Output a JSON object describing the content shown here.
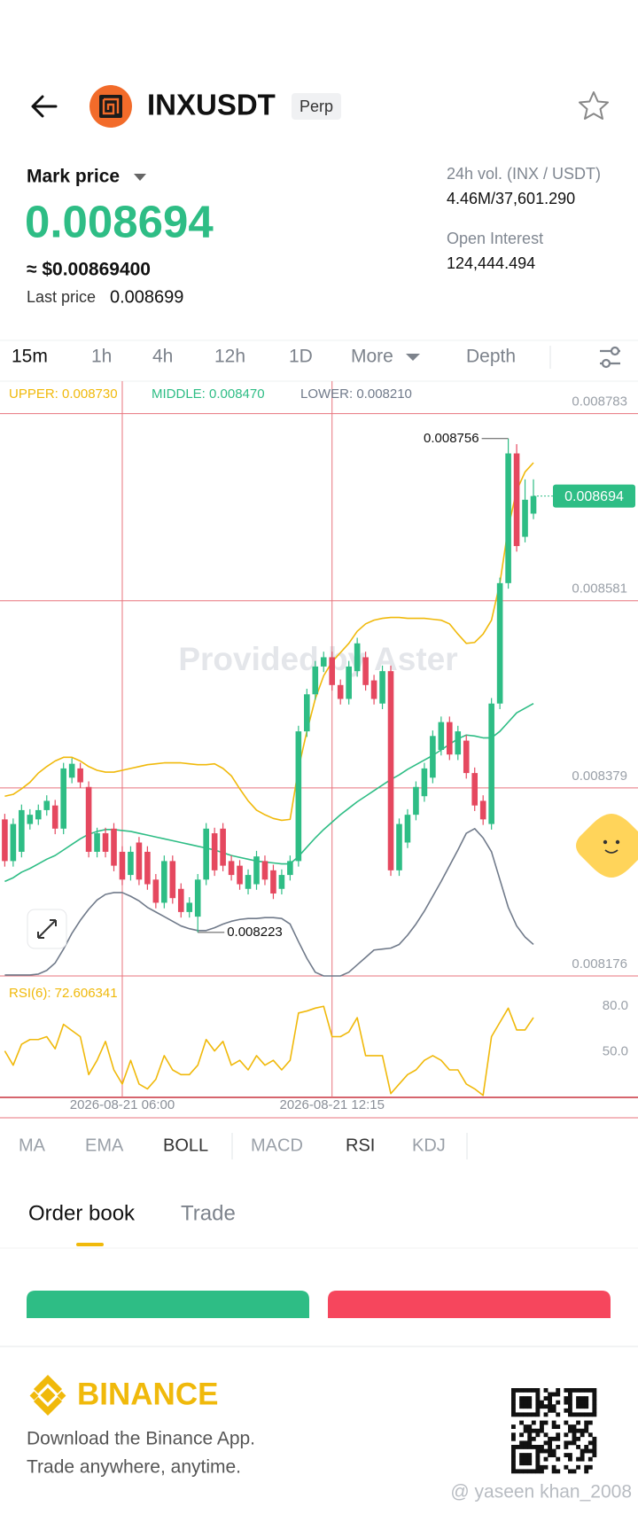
{
  "header": {
    "symbol": "INXUSDT",
    "badge": "Perp"
  },
  "price_panel": {
    "mark_price_label": "Mark price",
    "mark_price": "0.008694",
    "usd_price": "≈ $0.00869400",
    "last_price_label": "Last price",
    "last_price": "0.008699",
    "volume_label": "24h vol. (INX / USDT)",
    "volume": "4.46M/37,601.290",
    "open_interest_label": "Open Interest",
    "open_interest": "124,444.494"
  },
  "intervals": [
    "15m",
    "1h",
    "4h",
    "12h",
    "1D",
    "More",
    "Depth"
  ],
  "watermark": "Provided by Aster",
  "chart_data": [
    {
      "type": "candlestick",
      "up_color": "#2ebd85",
      "down_color": "#e5485f",
      "grid": true,
      "ylim": [
        0.008176,
        0.008818
      ],
      "yticks": [
        0.008783,
        0.008581,
        0.008379,
        0.008176
      ],
      "categories": [
        null,
        null,
        null,
        null,
        null,
        null,
        null,
        null,
        null,
        null,
        null,
        null,
        null,
        null,
        "2026-08-21 06:00",
        null,
        null,
        null,
        null,
        null,
        null,
        null,
        null,
        null,
        null,
        null,
        null,
        null,
        null,
        null,
        null,
        null,
        null,
        null,
        null,
        null,
        null,
        null,
        null,
        "2026-08-21 12:15",
        null,
        null,
        null,
        null,
        null,
        null,
        null,
        null,
        null,
        null,
        null,
        null,
        null,
        null,
        null,
        null,
        null,
        null,
        null,
        null,
        null,
        null,
        null,
        null
      ],
      "open": [
        0.008345,
        0.0083,
        0.00831,
        0.00834,
        0.008345,
        0.008355,
        0.00836,
        0.008335,
        0.00839,
        0.0084,
        0.00838,
        0.00831,
        0.00833,
        0.008335,
        0.00831,
        0.008285,
        0.00832,
        0.00831,
        0.00828,
        0.008255,
        0.0083,
        0.00827,
        0.008245,
        0.00824,
        0.00828,
        0.00833,
        0.008335,
        0.0083,
        0.008295,
        0.00827,
        0.008275,
        0.0083,
        0.00829,
        0.00827,
        0.008285,
        0.0083,
        0.00844,
        0.00848,
        0.00851,
        0.00852,
        0.00849,
        0.008475,
        0.008505,
        0.00852,
        0.008495,
        0.00847,
        0.008505,
        0.00829,
        0.00832,
        0.00835,
        0.00837,
        0.00839,
        0.00842,
        0.00845,
        0.008415,
        0.00843,
        0.008395,
        0.008365,
        0.00834,
        0.00847,
        0.0086,
        0.00874,
        0.00865,
        0.008675
      ],
      "high": [
        0.008351,
        0.008346,
        0.008361,
        0.008356,
        0.008361,
        0.008371,
        0.008366,
        0.008406,
        0.008411,
        0.008406,
        0.008386,
        0.008336,
        0.008336,
        0.008341,
        0.008316,
        0.008316,
        0.008326,
        0.008316,
        0.008286,
        0.008306,
        0.008306,
        0.008276,
        0.008261,
        0.008286,
        0.008341,
        0.008336,
        0.008341,
        0.008306,
        0.008301,
        0.008291,
        0.008311,
        0.008306,
        0.008296,
        0.008291,
        0.008306,
        0.008446,
        0.008486,
        0.008516,
        0.008526,
        0.008526,
        0.008496,
        0.008516,
        0.008541,
        0.008526,
        0.008501,
        0.008511,
        0.008511,
        0.008346,
        0.008356,
        0.008386,
        0.008406,
        0.008441,
        0.008456,
        0.008456,
        0.008446,
        0.008436,
        0.008401,
        0.008371,
        0.008476,
        0.008606,
        0.008756,
        0.00875,
        0.008712,
        0.008712
      ],
      "low": [
        0.008294,
        0.008294,
        0.008304,
        0.008334,
        0.008339,
        0.008349,
        0.008329,
        0.008329,
        0.008384,
        0.008379,
        0.008304,
        0.008304,
        0.008304,
        0.008289,
        0.008274,
        0.008279,
        0.008274,
        0.008269,
        0.008249,
        0.008249,
        0.008254,
        0.008239,
        0.008239,
        0.008223,
        0.008274,
        0.008284,
        0.008289,
        0.008279,
        0.008269,
        0.008264,
        0.008269,
        0.008274,
        0.008259,
        0.008264,
        0.008279,
        0.008294,
        0.008434,
        0.008474,
        0.008504,
        0.008484,
        0.008469,
        0.008469,
        0.008499,
        0.008484,
        0.008469,
        0.008464,
        0.008284,
        0.008284,
        0.008314,
        0.008344,
        0.008364,
        0.008384,
        0.008414,
        0.008409,
        0.008409,
        0.008389,
        0.008354,
        0.008339,
        0.008334,
        0.008464,
        0.008594,
        0.008634,
        0.008644,
        0.008669
      ],
      "close": [
        0.0083,
        0.00834,
        0.008355,
        0.00835,
        0.008355,
        0.008365,
        0.008335,
        0.0084,
        0.008405,
        0.008385,
        0.00831,
        0.00833,
        0.00831,
        0.008295,
        0.00828,
        0.00831,
        0.00828,
        0.008275,
        0.008255,
        0.0083,
        0.00826,
        0.008245,
        0.008255,
        0.00828,
        0.008335,
        0.00829,
        0.008295,
        0.008285,
        0.008275,
        0.008285,
        0.008305,
        0.00828,
        0.008265,
        0.008285,
        0.0083,
        0.00844,
        0.00848,
        0.00851,
        0.00852,
        0.00849,
        0.008475,
        0.00851,
        0.008535,
        0.00849,
        0.008475,
        0.008505,
        0.00829,
        0.00834,
        0.00835,
        0.00838,
        0.0084,
        0.008435,
        0.00845,
        0.008415,
        0.00844,
        0.008395,
        0.00836,
        0.008345,
        0.00847,
        0.0086,
        0.00874,
        0.00864,
        0.00869,
        0.008694
      ],
      "series": [
        {
          "name": "UPPER: 0.008730",
          "color": "#f0b90b",
          "values": [
            0.00837,
            0.008372,
            0.008378,
            0.008385,
            0.008395,
            0.008402,
            0.008408,
            0.008412,
            0.008412,
            0.008408,
            0.008402,
            0.008398,
            0.008396,
            0.008396,
            0.008398,
            0.0084,
            0.008402,
            0.008404,
            0.008405,
            0.008406,
            0.008406,
            0.008406,
            0.008405,
            0.008404,
            0.008404,
            0.008405,
            0.0084,
            0.008392,
            0.008378,
            0.008365,
            0.008355,
            0.00835,
            0.008346,
            0.008344,
            0.008345,
            0.0084,
            0.00844,
            0.008475,
            0.0085,
            0.008515,
            0.008525,
            0.008535,
            0.008548,
            0.008556,
            0.00856,
            0.008562,
            0.008563,
            0.008563,
            0.008562,
            0.008562,
            0.008562,
            0.008561,
            0.00856,
            0.008556,
            0.008545,
            0.008535,
            0.008536,
            0.008545,
            0.00856,
            0.0086,
            0.00866,
            0.0087,
            0.00872,
            0.00873
          ]
        },
        {
          "name": "MIDDLE: 0.008470",
          "color": "#2ebd85",
          "values": [
            0.008278,
            0.008282,
            0.008288,
            0.008292,
            0.008297,
            0.008302,
            0.008306,
            0.008312,
            0.008318,
            0.008324,
            0.008329,
            0.008332,
            0.008334,
            0.008334,
            0.008333,
            0.008332,
            0.00833,
            0.008328,
            0.008326,
            0.008324,
            0.008322,
            0.00832,
            0.008318,
            0.008316,
            0.008314,
            0.008312,
            0.008309,
            0.008306,
            0.008304,
            0.008302,
            0.0083,
            0.008299,
            0.008298,
            0.008297,
            0.008297,
            0.008305,
            0.008315,
            0.008325,
            0.008334,
            0.008342,
            0.00835,
            0.008357,
            0.008364,
            0.00837,
            0.008376,
            0.008382,
            0.008388,
            0.008393,
            0.008399,
            0.008404,
            0.008409,
            0.008414,
            0.00842,
            0.008426,
            0.008432,
            0.008436,
            0.008435,
            0.008433,
            0.008433,
            0.00844,
            0.00845,
            0.00846,
            0.008465,
            0.00847
          ]
        },
        {
          "name": "LOWER: 0.008210",
          "color": "#707a8a",
          "values": [
            0.008177,
            0.008177,
            0.008177,
            0.008177,
            0.008178,
            0.008182,
            0.00819,
            0.008205,
            0.008222,
            0.008236,
            0.008248,
            0.008258,
            0.008264,
            0.008266,
            0.008266,
            0.008262,
            0.008257,
            0.00825,
            0.008245,
            0.00824,
            0.008235,
            0.00823,
            0.008227,
            0.008225,
            0.008225,
            0.008228,
            0.008232,
            0.008235,
            0.008237,
            0.008238,
            0.008238,
            0.008239,
            0.008239,
            0.008238,
            0.008232,
            0.008213,
            0.008195,
            0.00818,
            0.008176,
            0.008176,
            0.008176,
            0.00818,
            0.008188,
            0.008196,
            0.008204,
            0.008205,
            0.008206,
            0.00821,
            0.00822,
            0.008232,
            0.008246,
            0.008262,
            0.008278,
            0.008295,
            0.008312,
            0.00833,
            0.008335,
            0.008325,
            0.00831,
            0.00828,
            0.00825,
            0.00823,
            0.008218,
            0.00821
          ]
        }
      ]
    },
    {
      "type": "line",
      "grid": false,
      "ylim": [
        20,
        100
      ],
      "yticks": [
        {
          "value": 80,
          "label": "80.0"
        },
        {
          "value": 50,
          "label": "50.0"
        }
      ],
      "series": [
        {
          "name": "RSI(6): 72.606341",
          "color": "#f0b90b",
          "values": [
            50.6,
            41.2,
            55,
            58.1,
            58.1,
            60,
            52,
            68.1,
            64,
            60,
            35,
            44.4,
            56.9,
            38.1,
            28.8,
            44.4,
            28.8,
            25.6,
            31.9,
            47.5,
            38.1,
            35,
            35,
            41.2,
            58.1,
            50.6,
            56.9,
            41.2,
            44.4,
            38.1,
            47.5,
            41.2,
            44.4,
            38.1,
            44.4,
            75.6,
            76.9,
            78.8,
            80,
            60,
            60,
            63.1,
            72.5,
            47.5,
            47.5,
            47.5,
            22.5,
            28.8,
            35,
            38.1,
            44.4,
            47.5,
            44.4,
            38.1,
            38.1,
            28.8,
            25.6,
            21.3,
            60,
            69.4,
            78.8,
            64.4,
            64.4,
            72.6
          ]
        }
      ]
    }
  ],
  "indicators": [
    "MA",
    "EMA",
    "BOLL",
    "MACD",
    "RSI",
    "KDJ"
  ],
  "book_tabs": [
    "Order book",
    "Trade"
  ],
  "footer": {
    "brand": "BINANCE",
    "line1": "Download the Binance App.",
    "line2": "Trade anywhere, anytime."
  },
  "credit": "@ yaseen khan_2008"
}
